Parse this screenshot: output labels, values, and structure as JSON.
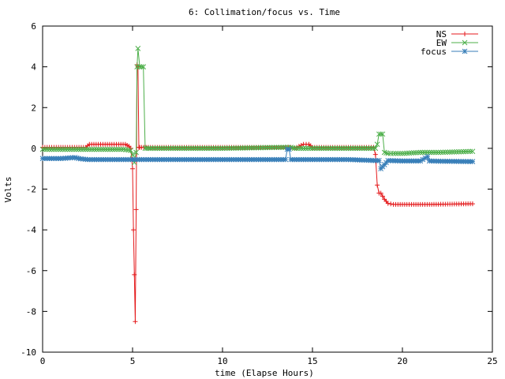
{
  "chart_data": {
    "type": "line",
    "title": "6: Collimation/focus vs. Time",
    "xlabel": "time (Elapse Hours)",
    "ylabel": "Volts",
    "xlim": [
      0,
      25
    ],
    "ylim": [
      -10,
      6
    ],
    "xticks": [
      0,
      5,
      10,
      15,
      20,
      25
    ],
    "yticks": [
      -10,
      -8,
      -6,
      -4,
      -2,
      0,
      2,
      4,
      6
    ],
    "grid": false,
    "legend_position": "top-right",
    "series": [
      {
        "name": "NS",
        "color": "#e41a1c",
        "marker": "plus",
        "x": [
          0,
          2.4,
          2.6,
          4.6,
          4.8,
          4.9,
          5.0,
          5.05,
          5.1,
          5.15,
          5.2,
          5.25,
          5.3,
          5.35,
          5.4,
          5.5,
          13.5,
          13.8,
          14.0,
          14.5,
          14.8,
          15.0,
          18.0,
          18.4,
          18.5,
          18.6,
          18.7,
          18.8,
          19.0,
          19.2,
          19.5,
          20.0,
          21.5,
          23.9
        ],
        "y": [
          0.05,
          0.05,
          0.2,
          0.2,
          0.1,
          0.0,
          -1.0,
          -4.0,
          -6.2,
          -8.5,
          -3.0,
          4.1,
          4.0,
          0.05,
          0.05,
          0.05,
          0.05,
          0.05,
          0.0,
          0.2,
          0.2,
          0.05,
          0.05,
          0.05,
          -0.3,
          -1.8,
          -2.2,
          -2.2,
          -2.5,
          -2.7,
          -2.75,
          -2.75,
          -2.75,
          -2.72
        ]
      },
      {
        "name": "EW",
        "color": "#4daf4a",
        "marker": "cross",
        "x": [
          0,
          2.0,
          4.5,
          4.9,
          5.0,
          5.1,
          5.2,
          5.25,
          5.3,
          5.4,
          5.5,
          5.6,
          5.7,
          5.8,
          6.0,
          10,
          13.5,
          13.8,
          14.0,
          15,
          18.0,
          18.5,
          18.6,
          18.7,
          18.8,
          18.9,
          19.0,
          19.2,
          19.5,
          20.0,
          21.0,
          22.0,
          23.9
        ],
        "y": [
          -0.05,
          -0.05,
          -0.05,
          -0.1,
          -0.3,
          -0.7,
          -0.2,
          4.0,
          4.9,
          4.0,
          4.0,
          4.0,
          0.0,
          0.0,
          0.0,
          0.0,
          0.05,
          0.05,
          0.0,
          0.0,
          0.0,
          0.0,
          0.2,
          0.7,
          0.7,
          0.7,
          -0.2,
          -0.25,
          -0.25,
          -0.25,
          -0.2,
          -0.2,
          -0.15
        ]
      },
      {
        "name": "focus",
        "color": "#377eb8",
        "marker": "star",
        "x": [
          0,
          1.0,
          1.8,
          2.0,
          2.5,
          4.0,
          5.0,
          6.0,
          8.0,
          10.0,
          12.0,
          13.5,
          13.6,
          13.7,
          13.8,
          14.0,
          15.0,
          17.0,
          18.5,
          18.7,
          18.8,
          19.0,
          19.2,
          20.0,
          21.0,
          21.4,
          21.5,
          22.0,
          23.0,
          23.9
        ],
        "y": [
          -0.5,
          -0.5,
          -0.45,
          -0.5,
          -0.55,
          -0.55,
          -0.55,
          -0.55,
          -0.55,
          -0.55,
          -0.55,
          -0.55,
          -0.05,
          -0.05,
          -0.55,
          -0.55,
          -0.55,
          -0.55,
          -0.6,
          -0.6,
          -1.0,
          -0.8,
          -0.6,
          -0.62,
          -0.62,
          -0.4,
          -0.62,
          -0.63,
          -0.64,
          -0.65
        ]
      }
    ]
  }
}
